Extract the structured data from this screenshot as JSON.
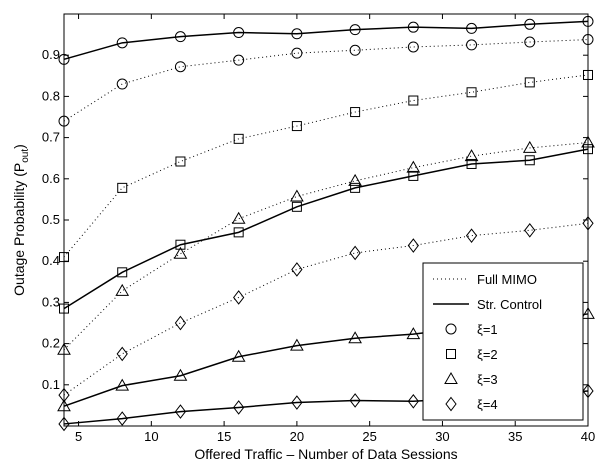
{
  "chart_data": {
    "type": "line",
    "xlabel": "Offered Traffic – Number of Data Sessions",
    "ylabel_main": "Outage Probability (P",
    "ylabel_sub": "out",
    "ylabel_close": ")",
    "xlim": [
      4,
      40
    ],
    "ylim": [
      0,
      1
    ],
    "xticks": [
      5,
      10,
      15,
      20,
      25,
      30,
      35,
      40
    ],
    "yticks": [
      0.1,
      0.2,
      0.3,
      0.4,
      0.5,
      0.6,
      0.7,
      0.8,
      0.9
    ],
    "grid": false,
    "legend_position": "bottom-right",
    "legend": {
      "line_styles": [
        {
          "style": "dotted",
          "label": "Full MIMO"
        },
        {
          "style": "solid",
          "label": "Str. Control"
        }
      ],
      "markers": [
        {
          "marker": "circle",
          "label": "ξ=1"
        },
        {
          "marker": "square",
          "label": "ξ=2"
        },
        {
          "marker": "triangle",
          "label": "ξ=3"
        },
        {
          "marker": "diamond",
          "label": "ξ=4"
        }
      ]
    },
    "x": [
      4,
      8,
      12,
      16,
      20,
      24,
      28,
      32,
      36,
      40
    ],
    "series": [
      {
        "style": "solid",
        "marker": "circle",
        "values": [
          0.89,
          0.93,
          0.945,
          0.955,
          0.952,
          0.962,
          0.968,
          0.965,
          0.975,
          0.982
        ]
      },
      {
        "style": "dotted",
        "marker": "circle",
        "values": [
          0.74,
          0.83,
          0.872,
          0.888,
          0.905,
          0.912,
          0.92,
          0.925,
          0.932,
          0.938
        ]
      },
      {
        "style": "dotted",
        "marker": "square",
        "values": [
          0.41,
          0.578,
          0.642,
          0.697,
          0.728,
          0.762,
          0.79,
          0.81,
          0.834,
          0.852
        ]
      },
      {
        "style": "solid",
        "marker": "square",
        "values": [
          0.285,
          0.373,
          0.44,
          0.47,
          0.532,
          0.578,
          0.607,
          0.636,
          0.645,
          0.672
        ]
      },
      {
        "style": "dotted",
        "marker": "triangle",
        "values": [
          0.185,
          0.328,
          0.418,
          0.503,
          0.557,
          0.595,
          0.627,
          0.655,
          0.675,
          0.688
        ]
      },
      {
        "style": "dotted",
        "marker": "diamond",
        "values": [
          0.075,
          0.175,
          0.25,
          0.312,
          0.38,
          0.42,
          0.438,
          0.462,
          0.475,
          0.492
        ]
      },
      {
        "style": "solid",
        "marker": "triangle",
        "values": [
          0.048,
          0.098,
          0.122,
          0.168,
          0.195,
          0.213,
          0.223,
          0.24,
          0.255,
          0.272
        ]
      },
      {
        "style": "solid",
        "marker": "diamond",
        "values": [
          0.005,
          0.018,
          0.035,
          0.045,
          0.057,
          0.062,
          0.06,
          0.068,
          0.075,
          0.085
        ]
      }
    ]
  }
}
